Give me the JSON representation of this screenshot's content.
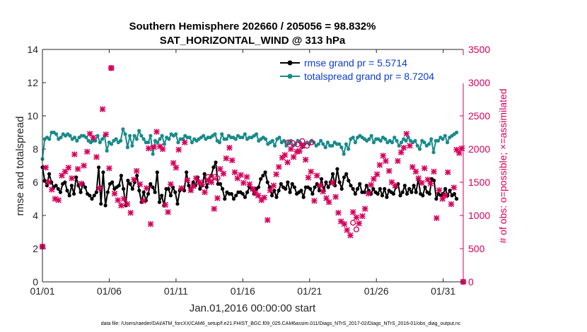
{
  "chart_data": {
    "type": "line",
    "title": "Southern Hemisphere 202660 / 205056 = 98.832%",
    "subtitle": "SAT_HORIZONTAL_WIND @ 313 hPa",
    "xlabel": "Jan.01,2016 00:00:00 start",
    "ylabel": "rmse and totalspread",
    "ylabel_right": "# of obs: o=possible; ×=assimilated",
    "ylim": [
      0,
      14
    ],
    "ylim_right": [
      0,
      3500
    ],
    "xlim": [
      0,
      31.5
    ],
    "x_ticks": [
      0,
      5,
      10,
      15,
      20,
      25,
      30
    ],
    "x_tick_labels": [
      "01/01",
      "01/06",
      "01/11",
      "01/16",
      "01/21",
      "01/26",
      "01/31"
    ],
    "y_ticks": [
      0,
      2,
      4,
      6,
      8,
      10,
      12,
      14
    ],
    "y_ticks_right": [
      0,
      500,
      1000,
      1500,
      2000,
      2500,
      3000,
      3500
    ],
    "legend_position": "top-right",
    "footer": "data file: /Users/raeder/DAI/ATM_forcXX/CAM6_setup/f.e21.FHIST_BGC.f09_025.CAM6assim.011/Diags_NTrS_2017-02/Diags_NTrS_2016-01/obs_diag_output.nc",
    "series": [
      {
        "name": "rmse grand pr = 5.5714",
        "color": "#000000",
        "axis": "left",
        "values": [
          6.9,
          6.1,
          5.8,
          6.5,
          6.0,
          5.7,
          5.8,
          5.6,
          5.4,
          5.9,
          6.0,
          5.5,
          5.2,
          5.8,
          5.3,
          6.3,
          5.8,
          5.4,
          5.9,
          5.7,
          5.3,
          5.2,
          5.0,
          5.2,
          5.4,
          6.9,
          4.7,
          6.6,
          4.6,
          5.4,
          5.9,
          6.0,
          5.6,
          5.7,
          5.8,
          6.4,
          5.6,
          4.6,
          6.1,
          5.9,
          5.6,
          6.0,
          6.4,
          5.5,
          4.8,
          5.4,
          4.9,
          5.3,
          5.9,
          5.7,
          5.4,
          6.6,
          4.8,
          5.2,
          4.6,
          5.6,
          5.6,
          5.2,
          5.7,
          5.4,
          4.7,
          5.5,
          5.6,
          5.5,
          6.6,
          5.8,
          5.5,
          6.0,
          5.8,
          6.3,
          5.6,
          5.8,
          6.5,
          5.7,
          6.1,
          6.4,
          6.9,
          7.2,
          5.9,
          5.9,
          5.6,
          5.0,
          5.4,
          5.3,
          5.3,
          5.0,
          5.2,
          5.4,
          5.4,
          5.3,
          5.1,
          5.4,
          5.7,
          5.6,
          5.3,
          5.6,
          5.7,
          6.2,
          6.4,
          6.6,
          6.0,
          5.7,
          5.2,
          5.5,
          5.1,
          5.5,
          5.9,
          5.7,
          5.6,
          6.0,
          5.4,
          5.9,
          5.7,
          5.3,
          5.4,
          5.5,
          5.1,
          5.7,
          5.7,
          5.6,
          5.3,
          5.7,
          5.9,
          5.5,
          6.2,
          5.5,
          6.0,
          5.7,
          6.0,
          6.5,
          5.8,
          6.8,
          6.0,
          5.6,
          6.3,
          6.5,
          6.1,
          5.8,
          5.6,
          5.3,
          5.6,
          5.9,
          5.4,
          5.4,
          5.8,
          5.5,
          5.3,
          5.6,
          5.4,
          5.3,
          5.6,
          5.2,
          5.6,
          5.1,
          5.5,
          5.4,
          5.3,
          5.7,
          5.9,
          5.2,
          5.4,
          5.8,
          5.3,
          5.6,
          5.4,
          5.8,
          5.4,
          6.2,
          5.3,
          5.2,
          5.7,
          5.4,
          5.3,
          6.2,
          6.1,
          5.0,
          5.3,
          5.2,
          5.3,
          5.6,
          5.2,
          5.5,
          5.2,
          5.3,
          5.0
        ]
      },
      {
        "name": "totalspread grand pr = 8.7204",
        "color": "#1a8a8a",
        "axis": "left",
        "values": [
          7.4,
          8.6,
          8.7,
          8.6,
          9.0,
          9.0,
          8.9,
          8.6,
          8.7,
          8.9,
          8.8,
          8.9,
          8.8,
          8.6,
          8.7,
          8.5,
          8.7,
          8.8,
          8.8,
          8.7,
          8.5,
          8.4,
          8.5,
          8.5,
          8.8,
          8.4,
          8.6,
          8.8,
          7.9,
          8.4,
          8.3,
          8.5,
          8.6,
          8.4,
          8.5,
          9.2,
          8.9,
          8.1,
          8.8,
          8.2,
          8.8,
          8.6,
          9.1,
          8.8,
          8.6,
          8.4,
          8.4,
          8.8,
          7.7,
          8.5,
          8.4,
          8.6,
          8.8,
          8.3,
          8.7,
          8.6,
          8.9,
          8.8,
          8.9,
          8.4,
          8.6,
          8.6,
          8.8,
          8.7,
          8.7,
          8.4,
          8.6,
          8.5,
          8.6,
          8.7,
          8.8,
          8.6,
          8.7,
          8.7,
          8.8,
          8.9,
          8.5,
          8.4,
          8.9,
          8.6,
          8.6,
          8.8,
          8.7,
          8.7,
          8.6,
          8.8,
          8.7,
          8.7,
          8.9,
          8.6,
          8.7,
          8.7,
          8.8,
          8.9,
          8.5,
          8.6,
          8.7,
          8.6,
          8.3,
          8.4,
          8.5,
          8.2,
          8.6,
          8.7,
          8.4,
          8.5,
          8.2,
          8.4,
          8.5,
          8.2,
          8.3,
          8.5,
          8.4,
          8.1,
          8.3,
          8.4,
          8.3,
          8.5,
          8.4,
          8.2,
          8.3,
          8.5,
          8.3,
          8.1,
          8.4,
          8.2,
          8.2,
          8.4,
          8.3,
          8.3,
          8.1,
          7.7,
          8.3,
          8.0,
          8.6,
          8.7,
          8.4,
          8.7,
          8.8,
          8.7,
          8.6,
          8.5,
          8.6,
          8.8,
          8.4,
          8.6,
          8.6,
          8.5,
          8.7,
          8.6,
          8.4,
          8.5,
          8.4,
          8.7,
          8.5,
          8.2,
          8.4,
          8.6,
          8.5,
          8.7,
          8.5,
          8.4,
          8.5,
          8.2,
          8.0,
          8.5,
          8.4,
          8.2,
          8.3,
          8.6,
          7.8,
          8.5,
          8.5,
          8.7,
          8.6,
          8.8,
          8.4,
          8.7,
          8.8,
          8.9,
          9.0
        ]
      }
    ],
    "obs_assimilated": [
      {
        "x": 0.0,
        "y": 530
      },
      {
        "x": 0.25,
        "y": 1720
      },
      {
        "x": 0.45,
        "y": 1500
      },
      {
        "x": 0.7,
        "y": 1390
      },
      {
        "x": 0.95,
        "y": 1250
      },
      {
        "x": 1.2,
        "y": 1230
      },
      {
        "x": 1.45,
        "y": 1600
      },
      {
        "x": 1.7,
        "y": 1660
      },
      {
        "x": 1.95,
        "y": 1720
      },
      {
        "x": 2.2,
        "y": 1560
      },
      {
        "x": 2.4,
        "y": 1920
      },
      {
        "x": 2.65,
        "y": 1700
      },
      {
        "x": 2.9,
        "y": 1480
      },
      {
        "x": 3.1,
        "y": 1750
      },
      {
        "x": 3.35,
        "y": 1960
      },
      {
        "x": 3.55,
        "y": 2230
      },
      {
        "x": 3.8,
        "y": 2170
      },
      {
        "x": 4.05,
        "y": 1880
      },
      {
        "x": 4.25,
        "y": 1410
      },
      {
        "x": 4.5,
        "y": 2600
      },
      {
        "x": 4.75,
        "y": 2220
      },
      {
        "x": 5.0,
        "y": 1710
      },
      {
        "x": 5.15,
        "y": 3220
      },
      {
        "x": 5.4,
        "y": 1330
      },
      {
        "x": 5.65,
        "y": 1230
      },
      {
        "x": 5.9,
        "y": 1150
      },
      {
        "x": 6.1,
        "y": 1250
      },
      {
        "x": 6.35,
        "y": 1170
      },
      {
        "x": 6.6,
        "y": 1040
      },
      {
        "x": 6.85,
        "y": 1540
      },
      {
        "x": 7.05,
        "y": 1670
      },
      {
        "x": 7.3,
        "y": 1470
      },
      {
        "x": 7.55,
        "y": 1220
      },
      {
        "x": 7.8,
        "y": 1410
      },
      {
        "x": 7.95,
        "y": 2010
      },
      {
        "x": 8.1,
        "y": 870
      },
      {
        "x": 8.35,
        "y": 2030
      },
      {
        "x": 8.55,
        "y": 2260
      },
      {
        "x": 8.8,
        "y": 2040
      },
      {
        "x": 9.0,
        "y": 2000
      },
      {
        "x": 9.2,
        "y": 1160
      },
      {
        "x": 9.4,
        "y": 1050
      },
      {
        "x": 9.6,
        "y": 1470
      },
      {
        "x": 9.8,
        "y": 1790
      },
      {
        "x": 10.0,
        "y": 1720
      },
      {
        "x": 10.2,
        "y": 1990
      },
      {
        "x": 10.4,
        "y": 1410
      },
      {
        "x": 10.65,
        "y": 2100
      },
      {
        "x": 10.85,
        "y": 1530
      },
      {
        "x": 11.1,
        "y": 1380
      },
      {
        "x": 11.3,
        "y": 1440
      },
      {
        "x": 11.5,
        "y": 1560
      },
      {
        "x": 11.75,
        "y": 1500
      },
      {
        "x": 11.95,
        "y": 1470
      },
      {
        "x": 12.15,
        "y": 1350
      },
      {
        "x": 12.4,
        "y": 1530
      },
      {
        "x": 12.65,
        "y": 1500
      },
      {
        "x": 12.85,
        "y": 1100
      },
      {
        "x": 13.1,
        "y": 1260
      },
      {
        "x": 13.3,
        "y": 1700
      },
      {
        "x": 13.55,
        "y": 1630
      },
      {
        "x": 13.75,
        "y": 1860
      },
      {
        "x": 14.0,
        "y": 2020
      },
      {
        "x": 14.2,
        "y": 1830
      },
      {
        "x": 14.4,
        "y": 1650
      },
      {
        "x": 14.6,
        "y": 1560
      },
      {
        "x": 14.85,
        "y": 1610
      },
      {
        "x": 15.05,
        "y": 1490
      },
      {
        "x": 15.3,
        "y": 1580
      },
      {
        "x": 15.5,
        "y": 1470
      },
      {
        "x": 15.75,
        "y": 1400
      },
      {
        "x": 15.95,
        "y": 1340
      },
      {
        "x": 16.15,
        "y": 1300
      },
      {
        "x": 16.4,
        "y": 1230
      },
      {
        "x": 16.6,
        "y": 1270
      },
      {
        "x": 16.85,
        "y": 930
      },
      {
        "x": 17.05,
        "y": 1380
      },
      {
        "x": 17.3,
        "y": 1450
      },
      {
        "x": 17.5,
        "y": 1620
      },
      {
        "x": 17.7,
        "y": 1730
      },
      {
        "x": 17.95,
        "y": 1870
      },
      {
        "x": 18.15,
        "y": 1910
      },
      {
        "x": 18.35,
        "y": 1800
      },
      {
        "x": 18.6,
        "y": 2000
      },
      {
        "x": 18.8,
        "y": 1880
      },
      {
        "x": 19.05,
        "y": 1960
      },
      {
        "x": 19.25,
        "y": 1970
      },
      {
        "x": 19.45,
        "y": 2050
      },
      {
        "x": 19.7,
        "y": 1840
      },
      {
        "x": 19.9,
        "y": 1570
      },
      {
        "x": 20.1,
        "y": 1660
      },
      {
        "x": 20.35,
        "y": 1220
      },
      {
        "x": 20.55,
        "y": 1600
      },
      {
        "x": 20.8,
        "y": 1450
      },
      {
        "x": 21.0,
        "y": 1360
      },
      {
        "x": 21.25,
        "y": 1260
      },
      {
        "x": 21.45,
        "y": 1200
      },
      {
        "x": 21.7,
        "y": 1490
      },
      {
        "x": 21.95,
        "y": 1280
      },
      {
        "x": 22.15,
        "y": 1040
      },
      {
        "x": 22.35,
        "y": 910
      },
      {
        "x": 22.6,
        "y": 870
      },
      {
        "x": 22.8,
        "y": 780
      },
      {
        "x": 23.05,
        "y": 700
      },
      {
        "x": 23.25,
        "y": 1050
      },
      {
        "x": 23.5,
        "y": 970
      },
      {
        "x": 23.7,
        "y": 880
      },
      {
        "x": 23.95,
        "y": 990
      },
      {
        "x": 24.15,
        "y": 1100
      },
      {
        "x": 24.4,
        "y": 1330
      },
      {
        "x": 24.6,
        "y": 1460
      },
      {
        "x": 24.8,
        "y": 1550
      },
      {
        "x": 25.05,
        "y": 1620
      },
      {
        "x": 25.25,
        "y": 1760
      },
      {
        "x": 25.5,
        "y": 1900
      },
      {
        "x": 25.7,
        "y": 1820
      },
      {
        "x": 25.95,
        "y": 1670
      },
      {
        "x": 26.15,
        "y": 1500
      },
      {
        "x": 26.4,
        "y": 1450
      },
      {
        "x": 26.6,
        "y": 1820
      },
      {
        "x": 26.85,
        "y": 1950
      },
      {
        "x": 27.05,
        "y": 2020
      },
      {
        "x": 27.25,
        "y": 2230
      },
      {
        "x": 27.5,
        "y": 2050
      },
      {
        "x": 27.7,
        "y": 1730
      },
      {
        "x": 27.95,
        "y": 1660
      },
      {
        "x": 28.15,
        "y": 1560
      },
      {
        "x": 28.4,
        "y": 1490
      },
      {
        "x": 28.6,
        "y": 1710
      },
      {
        "x": 28.85,
        "y": 1540
      },
      {
        "x": 29.05,
        "y": 1480
      },
      {
        "x": 29.3,
        "y": 1660
      },
      {
        "x": 29.5,
        "y": 960
      },
      {
        "x": 29.7,
        "y": 1380
      },
      {
        "x": 29.95,
        "y": 1250
      },
      {
        "x": 30.15,
        "y": 1300
      },
      {
        "x": 30.35,
        "y": 1650
      },
      {
        "x": 30.6,
        "y": 1170
      },
      {
        "x": 30.8,
        "y": 1420
      },
      {
        "x": 31.0,
        "y": 1990
      },
      {
        "x": 31.2,
        "y": 1940
      },
      {
        "x": 31.4,
        "y": 2010
      },
      {
        "x": 31.5,
        "y": 0
      }
    ],
    "obs_possible": [
      {
        "x": 0.0,
        "y": 530
      },
      {
        "x": 5.15,
        "y": 3220
      },
      {
        "x": 12.4,
        "y": 1580
      },
      {
        "x": 12.65,
        "y": 1570
      },
      {
        "x": 12.9,
        "y": 1580
      },
      {
        "x": 13.1,
        "y": 1560
      },
      {
        "x": 18.4,
        "y": 2100
      },
      {
        "x": 18.75,
        "y": 2090
      },
      {
        "x": 19.1,
        "y": 2070
      },
      {
        "x": 19.45,
        "y": 2120
      },
      {
        "x": 19.8,
        "y": 2050
      },
      {
        "x": 20.15,
        "y": 2100
      },
      {
        "x": 23.25,
        "y": 890
      },
      {
        "x": 23.5,
        "y": 790
      },
      {
        "x": 31.5,
        "y": 0
      }
    ]
  }
}
